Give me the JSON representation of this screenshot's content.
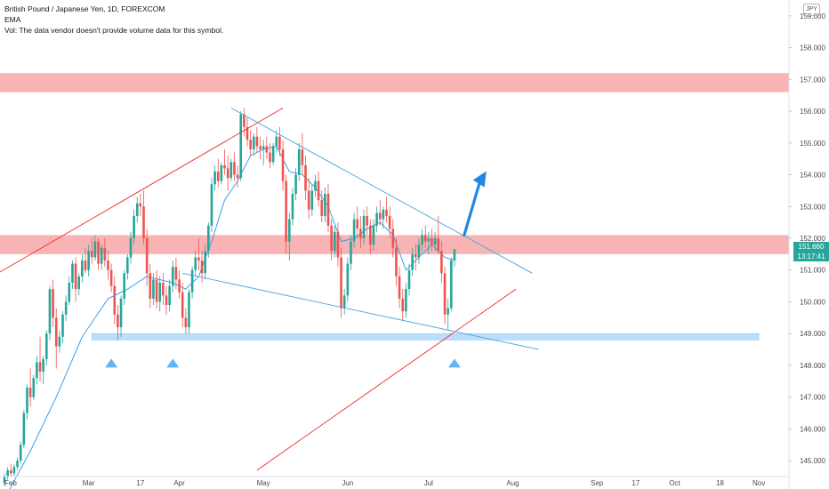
{
  "legend": {
    "title": "British Pound / Japanese Yen, 1D, FOREXCOM",
    "indicator": "EMA",
    "volume_note": "Vol: The data vendor doesn't provide volume data for this symbol."
  },
  "currency_label": "JPY",
  "last_price": {
    "value": "151.660",
    "countdown": "13:17:41",
    "color": "#26a69a"
  },
  "colors": {
    "up": "#26a69a",
    "down": "#ef5350",
    "ema": "#2196f3",
    "channel": "#ef2a2a",
    "wedge": "#4aa3df",
    "resistance_zone": "#f8b4b4",
    "support_zone": "#bbdefb",
    "arrow": "#1e88e5"
  },
  "chart_data": {
    "type": "candlestick",
    "symbol": "GBPJPY",
    "timeframe": "1D",
    "y_axis": {
      "range": [
        144.5,
        159.5
      ],
      "ticks": [
        "145.000",
        "146.000",
        "147.000",
        "148.000",
        "149.000",
        "150.000",
        "151.000",
        "152.000",
        "153.000",
        "154.000",
        "155.000",
        "156.000",
        "157.000",
        "158.000",
        "159.000"
      ]
    },
    "x_axis": {
      "ticks": [
        {
          "label": "Feb",
          "day": 0
        },
        {
          "label": "Mar",
          "day": 26
        },
        {
          "label": "17",
          "day": 42
        },
        {
          "label": "Apr",
          "day": 54
        },
        {
          "label": "May",
          "day": 80
        },
        {
          "label": "Jun",
          "day": 106
        },
        {
          "label": "Jul",
          "day": 131
        },
        {
          "label": "Aug",
          "day": 157
        },
        {
          "label": "Sep",
          "day": 183
        },
        {
          "label": "17",
          "day": 195
        },
        {
          "label": "Oct",
          "day": 207
        },
        {
          "label": "18",
          "day": 221
        },
        {
          "label": "Nov",
          "day": 233
        }
      ]
    },
    "candles": [
      [
        0,
        144.3,
        144.6,
        144.2,
        144.5
      ],
      [
        1,
        144.5,
        144.8,
        144.4,
        144.7
      ],
      [
        2,
        144.7,
        144.9,
        144.5,
        144.6
      ],
      [
        3,
        144.6,
        144.9,
        144.5,
        144.8
      ],
      [
        4,
        144.8,
        145.1,
        144.7,
        145.0
      ],
      [
        5,
        145.0,
        145.6,
        144.9,
        145.5
      ],
      [
        6,
        145.5,
        146.6,
        145.4,
        146.5
      ],
      [
        7,
        146.5,
        147.4,
        146.3,
        147.3
      ],
      [
        8,
        147.3,
        147.9,
        146.7,
        147.0
      ],
      [
        9,
        147.0,
        147.7,
        146.9,
        147.6
      ],
      [
        10,
        147.6,
        148.3,
        147.4,
        148.1
      ],
      [
        11,
        148.1,
        148.9,
        147.5,
        147.8
      ],
      [
        12,
        147.8,
        148.3,
        147.4,
        148.2
      ],
      [
        13,
        148.2,
        149.1,
        148.0,
        149.0
      ],
      [
        14,
        149.0,
        150.5,
        148.8,
        150.4
      ],
      [
        15,
        150.4,
        150.7,
        149.2,
        149.5
      ],
      [
        16,
        149.5,
        149.8,
        147.9,
        148.6
      ],
      [
        17,
        148.6,
        149.1,
        148.4,
        148.9
      ],
      [
        18,
        148.9,
        149.7,
        148.7,
        149.6
      ],
      [
        19,
        149.6,
        150.2,
        149.4,
        150.0
      ],
      [
        20,
        150.0,
        150.8,
        149.9,
        150.6
      ],
      [
        21,
        150.6,
        151.3,
        150.4,
        151.2
      ],
      [
        22,
        151.2,
        151.4,
        150.0,
        150.4
      ],
      [
        23,
        150.4,
        150.9,
        150.2,
        150.8
      ],
      [
        24,
        150.8,
        151.5,
        150.6,
        151.3
      ],
      [
        25,
        151.3,
        151.7,
        150.9,
        151.0
      ],
      [
        26,
        151.0,
        151.8,
        150.8,
        151.6
      ],
      [
        27,
        151.6,
        152.0,
        151.2,
        151.4
      ],
      [
        28,
        151.4,
        152.1,
        151.3,
        151.9
      ],
      [
        29,
        151.9,
        152.0,
        151.0,
        151.2
      ],
      [
        30,
        151.2,
        151.8,
        151.0,
        151.7
      ],
      [
        31,
        151.7,
        152.0,
        151.1,
        151.3
      ],
      [
        32,
        151.3,
        151.6,
        150.7,
        151.0
      ],
      [
        33,
        151.0,
        151.2,
        150.3,
        150.5
      ],
      [
        34,
        150.5,
        150.8,
        149.3,
        149.6
      ],
      [
        35,
        149.6,
        149.9,
        148.8,
        149.2
      ],
      [
        36,
        149.2,
        150.2,
        148.9,
        150.1
      ],
      [
        37,
        150.1,
        151.0,
        149.9,
        150.9
      ],
      [
        38,
        150.9,
        151.5,
        150.7,
        151.4
      ],
      [
        39,
        151.4,
        152.2,
        151.2,
        152.0
      ],
      [
        40,
        152.0,
        152.9,
        151.8,
        152.7
      ],
      [
        41,
        152.7,
        153.3,
        152.5,
        153.1
      ],
      [
        42,
        153.1,
        153.4,
        152.7,
        153.0
      ],
      [
        43,
        153.0,
        153.5,
        151.8,
        152.0
      ],
      [
        44,
        152.0,
        152.3,
        150.5,
        150.9
      ],
      [
        45,
        150.9,
        151.2,
        149.8,
        150.1
      ],
      [
        46,
        150.1,
        150.9,
        149.9,
        150.7
      ],
      [
        47,
        150.7,
        151.0,
        149.8,
        150.0
      ],
      [
        48,
        150.0,
        150.8,
        149.7,
        150.6
      ],
      [
        49,
        150.6,
        150.9,
        149.9,
        150.2
      ],
      [
        50,
        150.2,
        150.5,
        149.6,
        149.9
      ],
      [
        51,
        149.9,
        150.7,
        149.7,
        150.5
      ],
      [
        52,
        150.5,
        151.3,
        150.3,
        151.1
      ],
      [
        53,
        151.1,
        151.4,
        150.4,
        150.7
      ],
      [
        54,
        150.7,
        151.0,
        150.1,
        150.3
      ],
      [
        55,
        150.3,
        150.6,
        149.2,
        149.5
      ],
      [
        56,
        149.5,
        149.8,
        149.0,
        149.2
      ],
      [
        57,
        149.2,
        150.4,
        149.0,
        150.3
      ],
      [
        58,
        150.3,
        151.1,
        150.1,
        151.0
      ],
      [
        59,
        151.0,
        151.6,
        150.8,
        151.4
      ],
      [
        60,
        151.4,
        152.0,
        151.0,
        151.3
      ],
      [
        61,
        151.3,
        151.6,
        150.6,
        150.9
      ],
      [
        62,
        150.9,
        151.8,
        150.7,
        151.6
      ],
      [
        63,
        151.6,
        152.5,
        151.4,
        152.4
      ],
      [
        64,
        152.4,
        153.9,
        152.2,
        153.7
      ],
      [
        65,
        153.7,
        154.3,
        153.5,
        154.1
      ],
      [
        66,
        154.1,
        154.5,
        153.6,
        153.8
      ],
      [
        67,
        153.8,
        154.4,
        153.7,
        154.3
      ],
      [
        68,
        154.3,
        154.8,
        154.0,
        154.2
      ],
      [
        69,
        154.2,
        154.6,
        153.5,
        153.9
      ],
      [
        70,
        153.9,
        154.5,
        153.8,
        154.4
      ],
      [
        71,
        154.4,
        154.7,
        153.8,
        154.0
      ],
      [
        72,
        154.0,
        154.3,
        153.6,
        153.9
      ],
      [
        73,
        153.9,
        156.0,
        153.8,
        155.9
      ],
      [
        74,
        155.9,
        156.1,
        155.2,
        155.5
      ],
      [
        75,
        155.5,
        155.8,
        154.9,
        155.1
      ],
      [
        76,
        155.1,
        155.4,
        154.6,
        154.8
      ],
      [
        77,
        154.8,
        155.3,
        154.6,
        155.2
      ],
      [
        78,
        155.2,
        155.5,
        154.7,
        154.9
      ],
      [
        79,
        154.9,
        155.2,
        154.5,
        154.8
      ],
      [
        80,
        154.8,
        155.1,
        154.3,
        154.9
      ],
      [
        81,
        154.9,
        155.2,
        154.5,
        154.7
      ],
      [
        82,
        154.7,
        155.0,
        154.2,
        154.4
      ],
      [
        83,
        154.4,
        155.0,
        154.3,
        154.9
      ],
      [
        84,
        154.9,
        155.4,
        154.7,
        155.2
      ],
      [
        85,
        155.2,
        155.5,
        154.6,
        154.8
      ],
      [
        86,
        154.8,
        155.1,
        153.5,
        153.8
      ],
      [
        87,
        153.8,
        154.0,
        151.5,
        151.9
      ],
      [
        88,
        151.9,
        152.8,
        151.3,
        152.6
      ],
      [
        89,
        152.6,
        153.6,
        152.4,
        153.4
      ],
      [
        90,
        153.4,
        154.2,
        153.2,
        154.0
      ],
      [
        91,
        154.0,
        155.0,
        153.8,
        154.8
      ],
      [
        92,
        154.8,
        155.3,
        154.0,
        154.3
      ],
      [
        93,
        154.3,
        154.6,
        153.2,
        153.5
      ],
      [
        94,
        153.5,
        153.9,
        152.6,
        152.9
      ],
      [
        95,
        152.9,
        153.7,
        152.7,
        153.5
      ],
      [
        96,
        153.5,
        154.0,
        153.3,
        153.8
      ],
      [
        97,
        153.8,
        154.1,
        153.0,
        153.2
      ],
      [
        98,
        153.2,
        153.5,
        152.5,
        152.7
      ],
      [
        99,
        152.7,
        153.6,
        152.5,
        153.4
      ],
      [
        100,
        153.4,
        153.7,
        152.2,
        152.4
      ],
      [
        101,
        152.4,
        152.6,
        151.3,
        151.6
      ],
      [
        102,
        151.6,
        152.4,
        151.4,
        152.2
      ],
      [
        103,
        152.2,
        152.5,
        151.1,
        151.4
      ],
      [
        104,
        151.4,
        151.7,
        149.5,
        149.8
      ],
      [
        105,
        149.8,
        150.4,
        149.6,
        150.2
      ],
      [
        106,
        150.2,
        151.4,
        150.0,
        151.2
      ],
      [
        107,
        151.2,
        152.1,
        151.0,
        151.9
      ],
      [
        108,
        151.9,
        152.8,
        151.7,
        152.6
      ],
      [
        109,
        152.6,
        153.0,
        152.0,
        152.3
      ],
      [
        110,
        152.3,
        152.7,
        151.7,
        152.0
      ],
      [
        111,
        152.0,
        152.9,
        151.8,
        152.7
      ],
      [
        112,
        152.7,
        153.0,
        152.1,
        152.4
      ],
      [
        113,
        152.4,
        152.6,
        151.5,
        151.8
      ],
      [
        114,
        151.8,
        152.6,
        151.6,
        152.4
      ],
      [
        115,
        152.4,
        153.0,
        152.2,
        152.8
      ],
      [
        116,
        152.8,
        153.2,
        152.4,
        152.6
      ],
      [
        117,
        152.6,
        153.0,
        152.3,
        152.9
      ],
      [
        118,
        152.9,
        153.3,
        152.5,
        152.7
      ],
      [
        119,
        152.7,
        153.0,
        152.0,
        152.3
      ],
      [
        120,
        152.3,
        152.6,
        151.4,
        151.7
      ],
      [
        121,
        151.7,
        152.0,
        150.5,
        150.8
      ],
      [
        122,
        150.8,
        151.1,
        149.8,
        150.1
      ],
      [
        123,
        150.1,
        150.4,
        149.4,
        149.7
      ],
      [
        124,
        149.7,
        150.6,
        149.5,
        150.4
      ],
      [
        125,
        150.4,
        151.2,
        150.2,
        151.0
      ],
      [
        126,
        151.0,
        151.7,
        150.8,
        151.5
      ],
      [
        127,
        151.5,
        151.8,
        151.0,
        151.4
      ],
      [
        128,
        151.4,
        152.0,
        151.2,
        151.8
      ],
      [
        129,
        151.8,
        152.3,
        151.6,
        152.1
      ],
      [
        130,
        152.1,
        152.4,
        151.7,
        151.9
      ],
      [
        131,
        151.9,
        152.2,
        151.5,
        152.0
      ],
      [
        132,
        152.0,
        152.3,
        151.6,
        151.8
      ],
      [
        133,
        151.8,
        152.2,
        151.6,
        152.0
      ],
      [
        134,
        152.0,
        152.7,
        151.5,
        151.6
      ],
      [
        135,
        151.6,
        151.9,
        150.6,
        150.9
      ],
      [
        136,
        150.9,
        151.1,
        149.3,
        149.6
      ],
      [
        137,
        149.6,
        150.1,
        149.1,
        149.8
      ],
      [
        138,
        149.8,
        151.4,
        149.7,
        151.3
      ],
      [
        139,
        151.3,
        151.6,
        151.1,
        151.66
      ]
    ],
    "ema": [
      [
        0,
        143.8
      ],
      [
        8,
        145.3
      ],
      [
        16,
        147.0
      ],
      [
        24,
        148.9
      ],
      [
        32,
        150.1
      ],
      [
        38,
        150.4
      ],
      [
        44,
        150.8
      ],
      [
        48,
        150.7
      ],
      [
        52,
        150.6
      ],
      [
        56,
        150.4
      ],
      [
        60,
        150.8
      ],
      [
        64,
        151.9
      ],
      [
        68,
        153.2
      ],
      [
        72,
        153.8
      ],
      [
        76,
        154.6
      ],
      [
        80,
        154.8
      ],
      [
        84,
        154.9
      ],
      [
        88,
        154.1
      ],
      [
        92,
        154.0
      ],
      [
        96,
        153.6
      ],
      [
        100,
        153.0
      ],
      [
        104,
        151.9
      ],
      [
        108,
        152.0
      ],
      [
        112,
        152.3
      ],
      [
        116,
        152.5
      ],
      [
        120,
        152.1
      ],
      [
        124,
        151.0
      ],
      [
        128,
        151.4
      ],
      [
        132,
        151.8
      ],
      [
        136,
        151.4
      ],
      [
        139,
        151.3
      ]
    ],
    "zones": [
      {
        "name": "resistance",
        "type": "band",
        "low": 156.6,
        "high": 157.2
      },
      {
        "name": "key-level",
        "type": "band",
        "low": 151.5,
        "high": 152.1
      },
      {
        "name": "support",
        "type": "band",
        "low": 148.8,
        "high": 149.0
      }
    ],
    "trendlines": [
      {
        "name": "channel-upper",
        "x": [
          -2,
          86
        ],
        "y": [
          150.9,
          156.1
        ],
        "color": "channel"
      },
      {
        "name": "channel-lower",
        "x": [
          78,
          158
        ],
        "y": [
          144.7,
          150.4
        ],
        "color": "channel"
      },
      {
        "name": "wedge-upper",
        "x": [
          70,
          163
        ],
        "y": [
          156.1,
          150.9
        ],
        "color": "wedge"
      },
      {
        "name": "wedge-lower",
        "x": [
          55,
          165
        ],
        "y": [
          150.9,
          148.5
        ],
        "color": "wedge"
      }
    ],
    "markers": [
      {
        "name": "marker-1",
        "day": 33,
        "price": 148.1
      },
      {
        "name": "marker-2",
        "day": 52,
        "price": 148.1
      },
      {
        "name": "marker-3",
        "day": 139,
        "price": 148.1
      }
    ],
    "arrow": {
      "from": [
        142,
        152.1
      ],
      "to": [
        148,
        154.0
      ]
    }
  }
}
